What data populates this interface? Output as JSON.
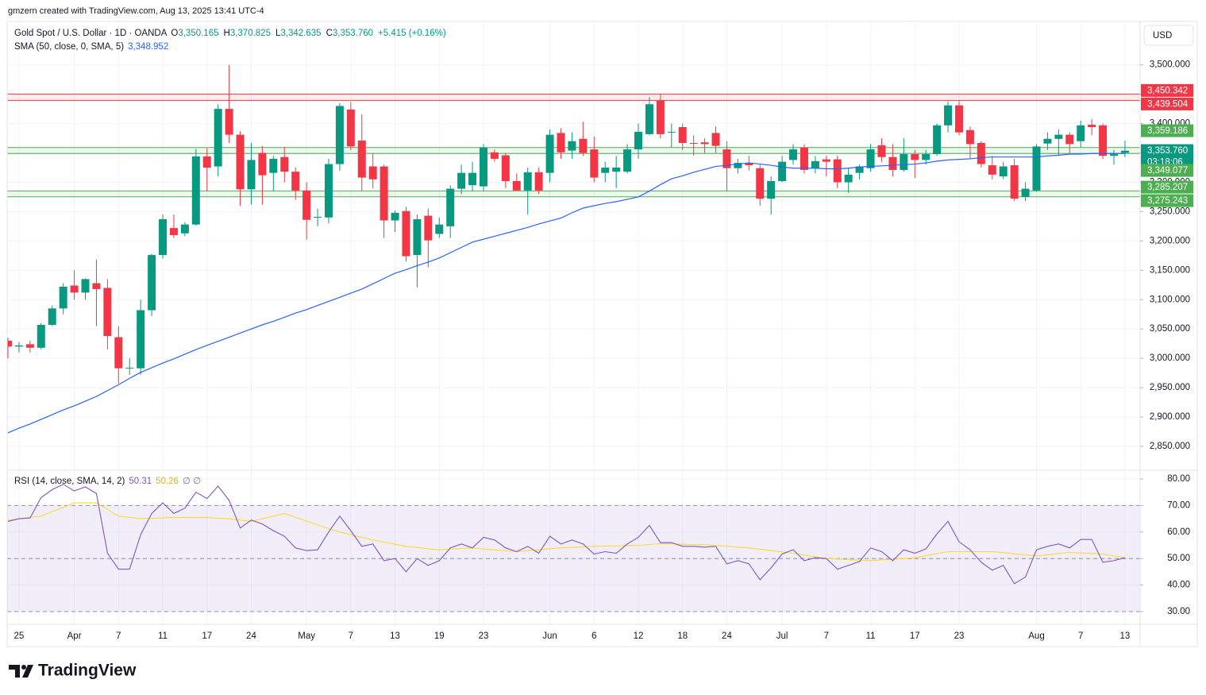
{
  "attribution": "gmzern created with TradingView.com, Aug 13, 2025 13:41 UTC-4",
  "brand": "TradingView",
  "chart_data": [
    {
      "type": "candlestick",
      "title": "Gold Spot / U.S. Dollar · 1D · OANDA",
      "ohlc_labels": [
        {
          "key": "O",
          "text": "3,350.165"
        },
        {
          "key": "H",
          "text": "3,370.825"
        },
        {
          "key": "L",
          "text": "3,342.635"
        },
        {
          "key": "C",
          "text": "3,353.760"
        }
      ],
      "change_label": "+5.415 (+0.16%)",
      "currency": "USD",
      "last_price_label": "3,353.760",
      "countdown": "03:18:06",
      "up_color": "#089981",
      "down_color": "#f23645",
      "categories": [
        null,
        "25",
        null,
        null,
        null,
        null,
        "Apr",
        null,
        null,
        null,
        "7",
        null,
        null,
        null,
        "11",
        null,
        null,
        null,
        "17",
        null,
        null,
        null,
        "24",
        null,
        null,
        null,
        null,
        "May",
        null,
        null,
        null,
        "7",
        null,
        null,
        null,
        "13",
        null,
        null,
        null,
        "19",
        null,
        null,
        null,
        "23",
        null,
        null,
        null,
        null,
        null,
        "Jun",
        null,
        null,
        null,
        "6",
        null,
        null,
        null,
        "12",
        null,
        null,
        null,
        "18",
        null,
        null,
        null,
        "24",
        null,
        null,
        null,
        null,
        "Jul",
        null,
        null,
        null,
        "7",
        null,
        null,
        null,
        "11",
        null,
        null,
        null,
        "17",
        null,
        null,
        null,
        "23",
        null,
        null,
        null,
        null,
        null,
        null,
        "Aug",
        null,
        null,
        null,
        "7",
        null,
        null,
        null,
        "13"
      ],
      "open": [
        3030,
        3020,
        3024,
        3018,
        3057,
        3085,
        3124,
        3112,
        3128,
        3120,
        3036,
        2983,
        2983,
        3082,
        3176,
        3222,
        3213,
        3228,
        3344,
        3327,
        3425,
        3381,
        3288,
        3350,
        3316,
        3343,
        3318,
        3286,
        3240,
        3240,
        3331,
        3424,
        3371,
        3327,
        3327,
        3235,
        3251,
        3176,
        3243,
        3212,
        3225,
        3289,
        3295,
        3293,
        3351,
        3346,
        3302,
        3286,
        3317,
        3316,
        3384,
        3354,
        3374,
        3356,
        3316,
        3318,
        3318,
        3356,
        3382,
        3439,
        3385,
        3394,
        3367,
        3368,
        3384,
        3356,
        3324,
        3333,
        3324,
        3272,
        3302,
        3338,
        3359,
        3324,
        3339,
        3339,
        3300,
        3316,
        3324,
        3363,
        3343,
        3321,
        3348,
        3338,
        3348,
        3397,
        3431,
        3389,
        3367,
        3329,
        3310,
        3329,
        3275,
        3286,
        3366,
        3374,
        3381,
        3370,
        3398,
        3397,
        3345,
        3350.165
      ],
      "high": [
        3035,
        3028,
        3030,
        3060,
        3090,
        3128,
        3150,
        3136,
        3168,
        3135,
        3055,
        3000,
        3100,
        3178,
        3245,
        3245,
        3232,
        3357,
        3358,
        3433,
        3500,
        3387,
        3367,
        3362,
        3345,
        3360,
        3325,
        3300,
        3255,
        3340,
        3435,
        3437,
        3416,
        3350,
        3330,
        3252,
        3258,
        3245,
        3255,
        3240,
        3295,
        3330,
        3335,
        3365,
        3356,
        3350,
        3315,
        3325,
        3325,
        3390,
        3392,
        3385,
        3403,
        3378,
        3335,
        3345,
        3365,
        3400,
        3445,
        3451,
        3400,
        3400,
        3380,
        3375,
        3395,
        3370,
        3340,
        3345,
        3330,
        3310,
        3345,
        3365,
        3365,
        3345,
        3345,
        3345,
        3325,
        3330,
        3365,
        3375,
        3365,
        3375,
        3355,
        3355,
        3400,
        3438,
        3440,
        3395,
        3370,
        3345,
        3335,
        3340,
        3300,
        3365,
        3385,
        3390,
        3385,
        3405,
        3408,
        3400,
        3355,
        3370.825
      ],
      "low": [
        3000,
        3010,
        3010,
        3015,
        3055,
        3075,
        3100,
        3100,
        3055,
        3015,
        2957,
        2972,
        2972,
        3072,
        3170,
        3205,
        3208,
        3226,
        3285,
        3310,
        3367,
        3260,
        3262,
        3262,
        3285,
        3300,
        3270,
        3202,
        3225,
        3230,
        3320,
        3355,
        3285,
        3290,
        3205,
        3215,
        3165,
        3121,
        3155,
        3205,
        3205,
        3280,
        3285,
        3285,
        3335,
        3290,
        3285,
        3245,
        3280,
        3300,
        3340,
        3340,
        3345,
        3300,
        3300,
        3290,
        3315,
        3340,
        3380,
        3375,
        3360,
        3355,
        3345,
        3350,
        3350,
        3285,
        3315,
        3320,
        3260,
        3245,
        3300,
        3330,
        3315,
        3315,
        3310,
        3290,
        3282,
        3305,
        3318,
        3335,
        3310,
        3318,
        3307,
        3330,
        3345,
        3385,
        3380,
        3340,
        3325,
        3305,
        3305,
        3268,
        3268,
        3284,
        3355,
        3345,
        3350,
        3360,
        3380,
        3340,
        3330,
        3342.635
      ],
      "close": [
        3020,
        3022,
        3018,
        3057,
        3085,
        3122,
        3112,
        3135,
        3118,
        3038,
        2983,
        2984,
        3082,
        3176,
        3237,
        3210,
        3228,
        3344,
        3325,
        3425,
        3381,
        3288,
        3338,
        3312,
        3340,
        3318,
        3286,
        3236,
        3241,
        3331,
        3430,
        3361,
        3308,
        3305,
        3235,
        3248,
        3174,
        3237,
        3201,
        3228,
        3289,
        3316,
        3316,
        3359,
        3340,
        3302,
        3286,
        3317,
        3286,
        3381,
        3351,
        3370,
        3350,
        3308,
        3325,
        3325,
        3356,
        3386,
        3433,
        3382,
        3386,
        3367,
        3366,
        3365,
        3362,
        3324,
        3333,
        3329,
        3272,
        3302,
        3335,
        3356,
        3321,
        3336,
        3335,
        3300,
        3313,
        3327,
        3356,
        3343,
        3321,
        3348,
        3338,
        3348,
        3397,
        3431,
        3385,
        3365,
        3331,
        3313,
        3327,
        3272,
        3289,
        3361,
        3374,
        3381,
        3365,
        3397,
        3394,
        3345,
        3348,
        3353.76
      ],
      "sma": {
        "name": "SMA (50, close, 0, SMA, 5)",
        "color": "#2962ff",
        "value_label": "3,348.952",
        "values": [
          2873,
          2881,
          2888,
          2896,
          2904,
          2912,
          2919,
          2927,
          2935,
          2945,
          2955,
          2966,
          2976,
          2984,
          2992,
          2999,
          3007,
          3015,
          3022,
          3029,
          3036,
          3043,
          3050,
          3057,
          3063,
          3070,
          3077,
          3083,
          3090,
          3097,
          3104,
          3111,
          3118,
          3127,
          3136,
          3145,
          3151,
          3158,
          3164,
          3171,
          3180,
          3189,
          3198,
          3203,
          3208,
          3213,
          3218,
          3223,
          3229,
          3234,
          3239,
          3248,
          3256,
          3260,
          3264,
          3267,
          3271,
          3275,
          3285,
          3296,
          3306,
          3311,
          3317,
          3322,
          3327,
          3329,
          3331,
          3333,
          3331,
          3329,
          3326,
          3324,
          3324,
          3324,
          3323,
          3323,
          3324,
          3326,
          3327,
          3328,
          3329,
          3330,
          3331,
          3333,
          3336,
          3338,
          3339,
          3340,
          3342,
          3343,
          3343,
          3343,
          3343,
          3343,
          3345,
          3346,
          3348,
          3348,
          3349,
          3349,
          3349,
          3348.952
        ]
      },
      "zones": [
        {
          "from": 3439.504,
          "to": 3450.342,
          "color": "#f23645"
        },
        {
          "from": 3349.077,
          "to": 3359.186,
          "color": "#4caf50"
        },
        {
          "from": 3275.243,
          "to": 3285.207,
          "color": "#4caf50"
        }
      ],
      "levels": [
        {
          "value": 3450.342,
          "label": "3,450.342",
          "color": "#f23645"
        },
        {
          "value": 3439.504,
          "label": "3,439.504",
          "color": "#f23645"
        },
        {
          "value": 3359.186,
          "label": "3,359.186",
          "color": "#4caf50"
        },
        {
          "value": 3349.077,
          "label": "3,349.077",
          "color": "#4caf50"
        },
        {
          "value": 3285.207,
          "label": "3,285.207",
          "color": "#4caf50"
        },
        {
          "value": 3275.243,
          "label": "3,275.243",
          "color": "#4caf50"
        }
      ],
      "ylim": [
        2812,
        3570
      ],
      "yticks": [
        {
          "value": 2850,
          "label": "2,850.000"
        },
        {
          "value": 2900,
          "label": "2,900.000"
        },
        {
          "value": 2950,
          "label": "2,950.000"
        },
        {
          "value": 3000,
          "label": "3,000.000"
        },
        {
          "value": 3050,
          "label": "3,050.000"
        },
        {
          "value": 3100,
          "label": "3,100.000"
        },
        {
          "value": 3150,
          "label": "3,150.000"
        },
        {
          "value": 3200,
          "label": "3,200.000"
        },
        {
          "value": 3250,
          "label": "3,250.000"
        },
        {
          "value": 3300,
          "label": "3,300.000"
        },
        {
          "value": 3350,
          "label": "3,350.000"
        },
        {
          "value": 3400,
          "label": "3,400.000"
        },
        {
          "value": 3450,
          "label": "3,450.000"
        },
        {
          "value": 3500,
          "label": "3,500.000"
        }
      ],
      "grid": true
    },
    {
      "type": "line",
      "title": "RSI (14, close, SMA, 14, 2)",
      "extra": "∅ ∅",
      "series": [
        {
          "color": "#7e57c2",
          "values": [
            64,
            65,
            65.3,
            73,
            76,
            78,
            75.5,
            77,
            74.5,
            52,
            46,
            46,
            59,
            67,
            71,
            67,
            69,
            75,
            72.6,
            77.3,
            71.9,
            61.5,
            64.5,
            63,
            60.5,
            58.4,
            54,
            53,
            53.3,
            60,
            66,
            60.5,
            54.6,
            55.5,
            49.2,
            50,
            45,
            50,
            47.4,
            49.2,
            54,
            55.5,
            54,
            58,
            57,
            54,
            52.6,
            54.6,
            52,
            58.4,
            55.5,
            57,
            55.5,
            51.7,
            52.6,
            52,
            55.5,
            58,
            62.5,
            56,
            56,
            54.6,
            54.6,
            54.3,
            54.6,
            48,
            49.2,
            48,
            42,
            46.5,
            51.7,
            53.3,
            49.2,
            50.3,
            50,
            46,
            47.4,
            48.9,
            54,
            52.6,
            49.2,
            53.3,
            52,
            53.6,
            59.3,
            64,
            56.3,
            53.3,
            48.6,
            45.6,
            47.4,
            40.5,
            43,
            53.3,
            54.6,
            55.5,
            54,
            57.2,
            57.2,
            48.6,
            49.2,
            50.31
          ]
        },
        {
          "color": "#fdd835",
          "values": [
            64.4,
            65,
            65.5,
            66,
            67.7,
            69.3,
            71,
            71,
            71,
            68.5,
            66,
            65.5,
            65,
            65.2,
            65.3,
            65.5,
            65.5,
            65.5,
            65.5,
            65.2,
            65,
            64.5,
            64,
            65,
            66,
            67,
            65.6,
            64.1,
            62.7,
            61.3,
            60,
            59,
            58,
            57,
            56.2,
            55.4,
            54.6,
            54.2,
            53.7,
            53.3,
            53.5,
            53.8,
            54,
            53.6,
            53.3,
            52.9,
            52.6,
            53,
            53.3,
            53.7,
            54,
            54.2,
            54.4,
            54.6,
            54.7,
            54.8,
            54.9,
            55,
            55.3,
            55.6,
            55.5,
            55.4,
            55.3,
            55.2,
            55,
            54.7,
            54.3,
            54,
            53.5,
            53,
            52.5,
            52,
            51.3,
            50.7,
            50,
            49.8,
            49.6,
            49.4,
            49.2,
            49.5,
            49.7,
            50,
            50.3,
            51.1,
            51.8,
            52.6,
            52.6,
            52.6,
            52.6,
            52.6,
            52.2,
            51.8,
            51.4,
            51,
            51.4,
            51.9,
            52.3,
            52.1,
            51.9,
            51.7,
            51,
            50.26
          ]
        }
      ],
      "levels": [
        70,
        50,
        30
      ],
      "band_color": "#7e57c2",
      "ylim": [
        25.2,
        83
      ],
      "yticks": [
        {
          "value": 80,
          "label": "80.00"
        },
        {
          "value": 70,
          "label": "70.00"
        },
        {
          "value": 60,
          "label": "60.00"
        },
        {
          "value": 50,
          "label": "50.00"
        },
        {
          "value": 40,
          "label": "40.00"
        },
        {
          "value": 30,
          "label": "30.00"
        }
      ],
      "grid": true
    }
  ]
}
